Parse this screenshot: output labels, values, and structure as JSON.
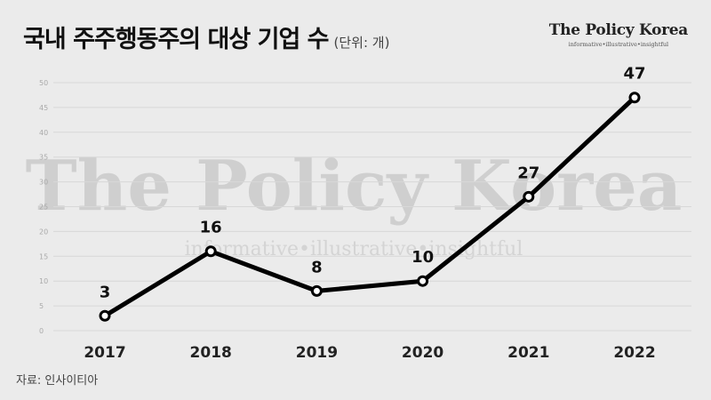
{
  "title": "국내 주주행동주의 대상 기업 수",
  "unit": "(단위: 개)",
  "logo": {
    "name": "The Policy Korea",
    "tagline": "informative•illustrative•insightful"
  },
  "watermark": {
    "name": "The Policy Korea",
    "tagline": "informative•illustrative•insightful"
  },
  "source": "자료: 인사이티아",
  "colors": {
    "background": "#ebebeb",
    "line": "#000000",
    "grid": "#d8d8d8",
    "marker_fill": "#ffffff"
  },
  "chart_data": {
    "type": "line",
    "title": "국내 주주행동주의 대상 기업 수",
    "subtitle": "(단위: 개)",
    "xlabel": "",
    "ylabel": "",
    "categories": [
      "2017",
      "2018",
      "2019",
      "2020",
      "2021",
      "2022"
    ],
    "series": [
      {
        "values": [
          3,
          16,
          8,
          10,
          27,
          47
        ]
      }
    ],
    "yticks": [
      0,
      5,
      10,
      15,
      20,
      25,
      30,
      35,
      40,
      45,
      50
    ],
    "ylim": [
      0,
      50
    ],
    "grid": true,
    "data_labels": true,
    "legend": "none"
  }
}
